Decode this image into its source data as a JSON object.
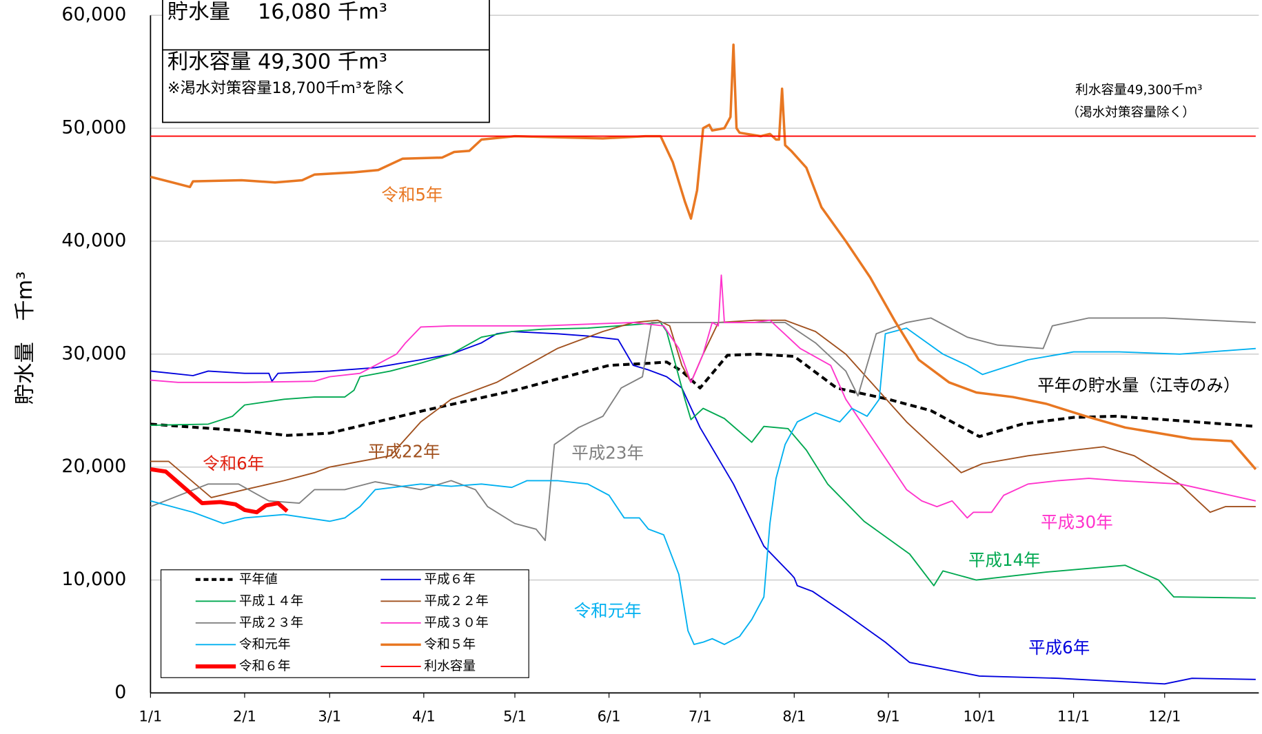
{
  "chart_data": {
    "type": "line",
    "ylabel": "貯水量　千m³",
    "info_box": {
      "storage": "貯水量　 16,080 千m³",
      "capacity": "利水容量  49,300 千m³",
      "note": "※渇水対策容量18,700千m³を除く"
    },
    "annotations": [
      "（渇水対策容量除く）"
    ],
    "xlim": [
      1,
      366
    ],
    "xticks": [
      {
        "value": 1,
        "label": "1/1"
      },
      {
        "value": 32,
        "label": "2/1"
      },
      {
        "value": 60,
        "label": "3/1"
      },
      {
        "value": 91,
        "label": "4/1"
      },
      {
        "value": 121,
        "label": "5/1"
      },
      {
        "value": 152,
        "label": "6/1"
      },
      {
        "value": 182,
        "label": "7/1"
      },
      {
        "value": 213,
        "label": "8/1"
      },
      {
        "value": 244,
        "label": "9/1"
      },
      {
        "value": 274,
        "label": "10/1"
      },
      {
        "value": 305,
        "label": "11/1"
      },
      {
        "value": 335,
        "label": "12/1"
      }
    ],
    "ylim": [
      0,
      60000
    ],
    "yticks": [
      0,
      {
        "value": 10000,
        "label": "10,000"
      },
      {
        "value": 20000,
        "label": "20,000"
      },
      {
        "value": 30000,
        "label": "30,000"
      },
      {
        "value": 40000,
        "label": "40,000"
      },
      {
        "value": 50000,
        "label": "50,000"
      },
      {
        "value": 60000,
        "label": "60,000"
      }
    ],
    "grid": true,
    "legend": "lower left",
    "series": [
      {
        "name": "平年値",
        "label": "平年の貯水量（江寺のみ）",
        "label_color": "#000000",
        "color": "#000000",
        "line_style": "dashed",
        "x": [
          1,
          32,
          46,
          60,
          91,
          121,
          135,
          152,
          166,
          171,
          176,
          182,
          191,
          201,
          213,
          227,
          244,
          258,
          274,
          288,
          305,
          319,
          335,
          365
        ],
        "values": [
          23800,
          23200,
          22800,
          23000,
          25000,
          26800,
          27800,
          29000,
          29200,
          29300,
          28500,
          27000,
          29900,
          30000,
          29800,
          27000,
          26000,
          25000,
          22700,
          23800,
          24400,
          24500,
          24200,
          23600
        ]
      },
      {
        "name": "平成６年",
        "label": "平成6年",
        "color": "#0000dd",
        "x": [
          1,
          15,
          20,
          32,
          40,
          41,
          43,
          60,
          75,
          90,
          100,
          110,
          115,
          120,
          135,
          145,
          155,
          160,
          165,
          171,
          176,
          182,
          193,
          203,
          212,
          213,
          214,
          219,
          230,
          243,
          251,
          274,
          300,
          335,
          344,
          365
        ],
        "values": [
          28500,
          28100,
          28500,
          28300,
          28300,
          27600,
          28300,
          28500,
          28800,
          29500,
          30000,
          31000,
          31800,
          32000,
          31800,
          31600,
          31300,
          29000,
          28600,
          28000,
          27000,
          23500,
          18500,
          13000,
          10500,
          10200,
          9500,
          9000,
          7000,
          4500,
          2700,
          1500,
          1300,
          800,
          1300,
          1200
        ]
      },
      {
        "name": "平成１４年",
        "label": "平成14年",
        "color": "#00a850",
        "x": [
          1,
          20,
          28,
          32,
          45,
          55,
          65,
          68,
          70,
          80,
          90,
          100,
          110,
          120,
          130,
          145,
          160,
          169,
          171,
          177,
          179,
          183,
          190,
          199,
          203,
          211,
          217,
          224,
          236,
          251,
          259,
          262,
          273,
          296,
          322,
          333,
          338,
          365
        ],
        "values": [
          23700,
          23800,
          24500,
          25500,
          26000,
          26200,
          26200,
          26800,
          28000,
          28500,
          29200,
          30000,
          31500,
          32000,
          32200,
          32300,
          32600,
          32800,
          32000,
          26000,
          24200,
          25200,
          24300,
          22200,
          23600,
          23400,
          21500,
          18500,
          15200,
          12300,
          9500,
          10800,
          10000,
          10700,
          11300,
          10000,
          8500,
          8400
        ]
      },
      {
        "name": "平成２２年",
        "label": "平成22年",
        "color": "#a0501e",
        "x": [
          1,
          7,
          21,
          32,
          45,
          55,
          60,
          80,
          90,
          100,
          115,
          125,
          135,
          150,
          160,
          168,
          172,
          176,
          179,
          183,
          188,
          200,
          210,
          220,
          230,
          240,
          250,
          260,
          268,
          275,
          290,
          305,
          315,
          325,
          340,
          350,
          355,
          365
        ],
        "values": [
          20500,
          20500,
          17300,
          18000,
          18800,
          19500,
          20000,
          21000,
          24000,
          26000,
          27500,
          29000,
          30500,
          32000,
          32800,
          33000,
          32500,
          29000,
          27500,
          30000,
          32800,
          33000,
          33000,
          32000,
          30000,
          27000,
          24000,
          21500,
          19500,
          20300,
          21000,
          21500,
          21800,
          21000,
          18500,
          16000,
          16500,
          16500
        ]
      },
      {
        "name": "平成２３年",
        "label": "平成23年",
        "color": "#808080",
        "x": [
          1,
          20,
          30,
          40,
          50,
          55,
          65,
          75,
          90,
          100,
          108,
          112,
          121,
          128,
          131,
          134,
          142,
          150,
          156,
          163,
          166,
          185,
          210,
          220,
          230,
          234,
          240,
          250,
          258,
          270,
          280,
          295,
          298,
          310,
          335,
          365
        ],
        "values": [
          16500,
          18500,
          18500,
          17000,
          16800,
          18000,
          18000,
          18700,
          18000,
          18800,
          18000,
          16500,
          15000,
          14500,
          13500,
          22000,
          23500,
          24500,
          27000,
          28000,
          32800,
          32800,
          32800,
          31000,
          28500,
          26300,
          31800,
          32800,
          33200,
          31500,
          30800,
          30500,
          32500,
          33200,
          33200,
          32800
        ]
      },
      {
        "name": "平成３０年",
        "label": "平成30年",
        "color": "#ff33cc",
        "x": [
          1,
          10,
          32,
          55,
          60,
          70,
          75,
          82,
          85,
          90,
          100,
          130,
          160,
          170,
          175,
          179,
          183,
          186,
          188,
          189,
          190,
          200,
          205,
          215,
          225,
          230,
          240,
          250,
          255,
          260,
          265,
          270,
          272,
          278,
          282,
          290,
          300,
          310,
          320,
          340,
          365
        ],
        "values": [
          27700,
          27500,
          27500,
          27600,
          28000,
          28300,
          29000,
          30000,
          31000,
          32400,
          32500,
          32500,
          32800,
          32500,
          30500,
          27500,
          30000,
          32800,
          32500,
          37000,
          32800,
          32800,
          33000,
          30500,
          29000,
          26000,
          22000,
          18000,
          17000,
          16500,
          17000,
          15500,
          16000,
          16000,
          17500,
          18500,
          18800,
          19000,
          18800,
          18500,
          17000
        ]
      },
      {
        "name": "令和元年",
        "label": "令和元年",
        "color": "#00b0f0",
        "x": [
          1,
          15,
          25,
          32,
          45,
          60,
          65,
          70,
          75,
          90,
          100,
          110,
          120,
          125,
          135,
          145,
          152,
          157,
          162,
          165,
          170,
          175,
          178,
          180,
          183,
          186,
          190,
          195,
          199,
          201,
          203,
          205,
          207,
          210,
          214,
          220,
          228,
          232,
          237,
          241,
          243,
          250,
          262,
          270,
          275,
          290,
          305,
          320,
          340,
          365
        ],
        "values": [
          17000,
          16000,
          15000,
          15500,
          15800,
          15200,
          15500,
          16500,
          18000,
          18500,
          18300,
          18500,
          18200,
          18800,
          18800,
          18500,
          17500,
          15500,
          15500,
          14500,
          14000,
          10500,
          5500,
          4300,
          4500,
          4800,
          4300,
          5000,
          6500,
          7500,
          8500,
          15000,
          19000,
          22000,
          24000,
          24800,
          24000,
          25200,
          24500,
          26000,
          31800,
          32300,
          30000,
          29000,
          28200,
          29500,
          30200,
          30200,
          30000,
          30500
        ]
      },
      {
        "name": "令和５年",
        "label": "令和5年",
        "color": "#e87722",
        "line_width": 3,
        "x": [
          1,
          14,
          15,
          31,
          42,
          51,
          55,
          68,
          76,
          84,
          97,
          101,
          106,
          110,
          121,
          150,
          164,
          169,
          173,
          177,
          179,
          181,
          183,
          185,
          186,
          190,
          192,
          193,
          194,
          195,
          202,
          205,
          207,
          208,
          209,
          210,
          212,
          217,
          222,
          230,
          238,
          246,
          254,
          264,
          273,
          285,
          296,
          309,
          322,
          333,
          344,
          357,
          365
        ],
        "values": [
          45700,
          44800,
          45300,
          45400,
          45200,
          45400,
          45900,
          46100,
          46300,
          47300,
          47400,
          47900,
          48000,
          49000,
          49300,
          49100,
          49300,
          49300,
          47000,
          43500,
          42000,
          44500,
          50000,
          50300,
          49800,
          50000,
          51000,
          57400,
          50000,
          49600,
          49300,
          49500,
          49000,
          49000,
          53500,
          48500,
          48000,
          46500,
          43000,
          40000,
          36800,
          33000,
          29500,
          27500,
          26600,
          26200,
          25600,
          24500,
          23500,
          23000,
          22500,
          22300,
          19800
        ]
      },
      {
        "name": "令和６年",
        "label": "令和6年",
        "label_color": "#e02010",
        "color": "#ff0000",
        "line_width": 5,
        "x": [
          1,
          6,
          12,
          18,
          24,
          29,
          32,
          36,
          39,
          43,
          46
        ],
        "values": [
          19800,
          19600,
          18200,
          16800,
          16900,
          16700,
          16200,
          16000,
          16600,
          16800,
          16100
        ]
      },
      {
        "name": "利水容量",
        "label": "利水容量49,300千m³",
        "label_color": "#000000",
        "color": "#ff0000",
        "x": [
          1,
          365
        ],
        "values": [
          49300,
          49300
        ]
      }
    ]
  }
}
